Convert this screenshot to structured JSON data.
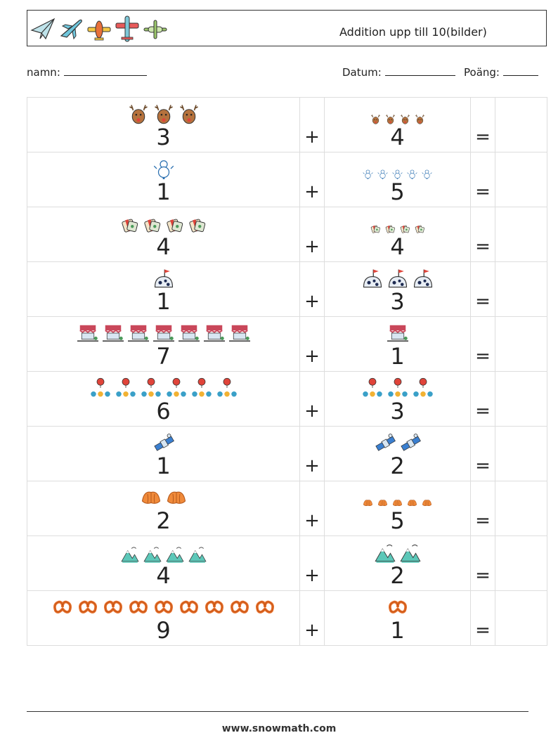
{
  "header": {
    "title": "Addition upp till 10(bilder)",
    "plane_icons": [
      "paper-plane-icon",
      "jet-icon",
      "yellow-plane-icon",
      "red-plane-icon",
      "green-plane-icon"
    ]
  },
  "fields": {
    "name_label": "namn:",
    "date_label": "Datum:",
    "score_label": "Poäng:"
  },
  "operators": {
    "plus": "+",
    "equals": "="
  },
  "rows": [
    {
      "a": "3",
      "a_icon": "reindeer",
      "a_count": 3,
      "b": "4",
      "b_icon": "reindeer",
      "b_count": 4
    },
    {
      "a": "1",
      "a_icon": "snowman",
      "a_count": 1,
      "b": "5",
      "b_icon": "snowman",
      "b_count": 5
    },
    {
      "a": "4",
      "a_icon": "gift",
      "a_count": 4,
      "b": "4",
      "b_icon": "gift",
      "b_count": 4
    },
    {
      "a": "1",
      "a_icon": "igloo",
      "a_count": 1,
      "b": "3",
      "b_icon": "igloo",
      "b_count": 3
    },
    {
      "a": "7",
      "a_icon": "market-stall",
      "a_count": 7,
      "b": "1",
      "b_icon": "market-stall",
      "b_count": 1
    },
    {
      "a": "6",
      "a_icon": "ornament-balloons",
      "a_count": 6,
      "b": "3",
      "b_icon": "ornament-balloons",
      "b_count": 3
    },
    {
      "a": "1",
      "a_icon": "satellite",
      "a_count": 1,
      "b": "2",
      "b_icon": "satellite",
      "b_count": 2
    },
    {
      "a": "2",
      "a_icon": "croissant",
      "a_count": 2,
      "b": "5",
      "b_icon": "croissant",
      "b_count": 5
    },
    {
      "a": "4",
      "a_icon": "mountain",
      "a_count": 4,
      "b": "2",
      "b_icon": "mountain",
      "b_count": 2
    },
    {
      "a": "9",
      "a_icon": "pretzel",
      "a_count": 9,
      "b": "1",
      "b_icon": "pretzel",
      "b_count": 1
    }
  ],
  "footer": {
    "url": "www.snowmath.com"
  }
}
